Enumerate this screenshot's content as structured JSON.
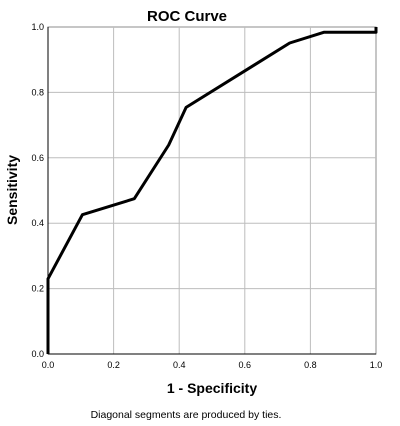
{
  "chart_data": {
    "type": "line",
    "title": "ROC Curve",
    "xlabel": "1 - Specificity",
    "ylabel": "Sensitivity",
    "footnote": "Diagonal segments are produced by ties.",
    "xlim": [
      0,
      1
    ],
    "ylim": [
      0,
      1
    ],
    "grid": true,
    "x_ticks": [
      "0.0",
      "0.2",
      "0.4",
      "0.6",
      "0.8",
      "1.0"
    ],
    "y_ticks": [
      "0.0",
      "0.2",
      "0.4",
      "0.6",
      "0.8",
      "1.0"
    ],
    "series": [
      {
        "x": [
          0.0,
          0.0,
          0.105,
          0.263,
          0.368,
          0.421,
          0.737,
          0.842,
          1.0,
          1.0
        ],
        "y": [
          0.0,
          0.23,
          0.426,
          0.475,
          0.639,
          0.754,
          0.951,
          0.984,
          0.984,
          1.0
        ]
      }
    ],
    "line_color": "#000000"
  }
}
